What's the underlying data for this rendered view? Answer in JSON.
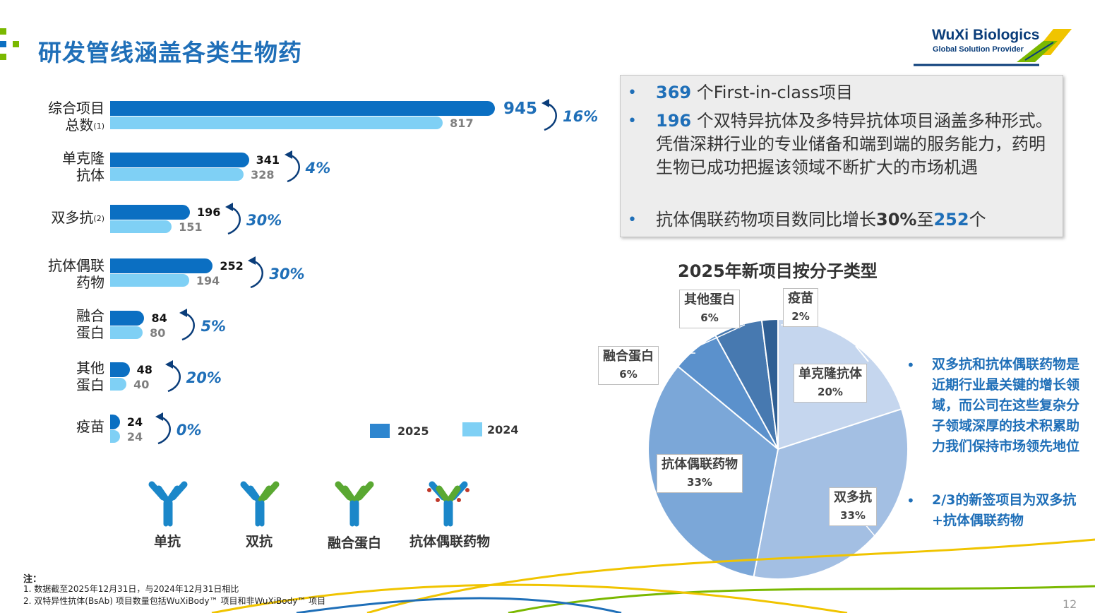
{
  "header": {
    "title": "研发管线涵盖各类生物药",
    "logo_main": "WuXi Biologics",
    "logo_sub": "Global Solution Provider"
  },
  "colors": {
    "accent": "#1f6fb8",
    "bar_2025": "#0b6fc2",
    "bar_2024": "#7fd0f5",
    "legend_2025": "#2e86cf",
    "legend_2024": "#7fd0f5"
  },
  "chart_data": [
    {
      "type": "bar",
      "orientation": "horizontal",
      "categories": [
        "综合项目总数(1)",
        "单克隆抗体",
        "双多抗(2)",
        "抗体偶联药物",
        "融合蛋白",
        "其他蛋白",
        "疫苗"
      ],
      "series": [
        {
          "name": "2025",
          "values": [
            945,
            341,
            196,
            252,
            84,
            48,
            24
          ]
        },
        {
          "name": "2024",
          "values": [
            817,
            328,
            151,
            194,
            80,
            40,
            24
          ]
        }
      ],
      "growth_labels": [
        "16%",
        "4%",
        "30%",
        "30%",
        "5%",
        "20%",
        "0%"
      ],
      "legend": [
        "2025",
        "2024"
      ],
      "legend_position": "bottom-right"
    },
    {
      "type": "pie",
      "title": "2025年新项目按分子类型",
      "labels": [
        "单克隆抗体",
        "双多抗",
        "抗体偶联药物",
        "融合蛋白",
        "其他蛋白",
        "疫苗"
      ],
      "values": [
        20,
        33,
        33,
        6,
        6,
        2
      ],
      "value_labels": [
        "20%",
        "33%",
        "33%",
        "6%",
        "6%",
        "2%"
      ],
      "colors": [
        "#c5d6ee",
        "#a3bfe3",
        "#7ba7d8",
        "#5b91cc",
        "#4779b0",
        "#2f5f94"
      ]
    }
  ],
  "bar_labels": {
    "total_line1": "综合项目",
    "total_line2": "总数",
    "total_sup": "(1)",
    "mab_line1": "单克隆",
    "mab_line2": "抗体",
    "bsab": "双多抗",
    "bsab_sup": "(2)",
    "adc_line1": "抗体偶联",
    "adc_line2": "药物",
    "fusion_line1": "融合",
    "fusion_line2": "蛋白",
    "other_line1": "其他",
    "other_line2": "蛋白",
    "vaccine": "疫苗"
  },
  "bullets": [
    {
      "num": "369",
      "text": " 个First-in-class项目"
    },
    {
      "num": "196",
      "text": " 个双特异抗体及多特异抗体项目涵盖多种形式。凭借深耕行业的专业储备和端到端的服务能力，药明生物已成功把握该领域不断扩大的市场机遇"
    },
    {
      "pre": "抗体偶联药物项目数同比增长",
      "pct": "30%",
      "mid": "至",
      "num": "252",
      "post": "个"
    }
  ],
  "icons": [
    {
      "name": "mab",
      "label": "单抗"
    },
    {
      "name": "bsab",
      "label": "双抗"
    },
    {
      "name": "fusion",
      "label": "融合蛋白"
    },
    {
      "name": "adc",
      "label": "抗体偶联药物"
    }
  ],
  "right_notes": [
    "双多抗和抗体偶联药物是近期行业最关键的增长领域，而公司在这些复杂分子领域深厚的技术积累助力我们保持市场领先地位",
    "2/3的新签项目为双多抗+抗体偶联药物"
  ],
  "footnotes": {
    "head": "注：",
    "n1": "1. 数据截至2025年12月31日，与2024年12月31日相比",
    "n2": "2. 双特异性抗体(BsAb) 项目数量包括WuXiBody™ 项目和非WuXiBody™ 项目"
  },
  "page_number": "12"
}
